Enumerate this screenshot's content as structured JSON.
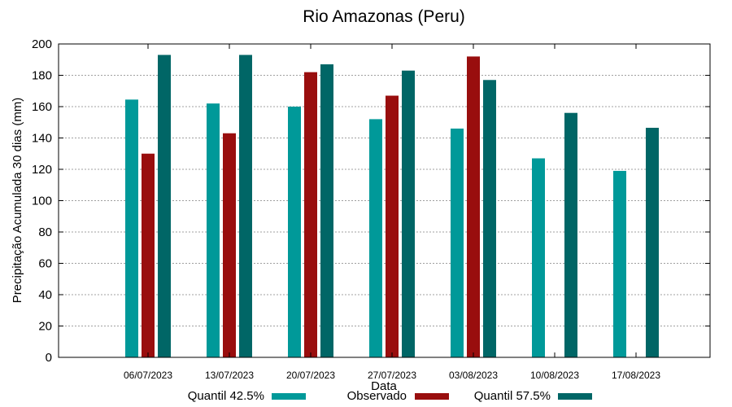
{
  "chart_data": {
    "type": "bar",
    "title": "Rio Amazonas (Peru)",
    "xlabel": "Data",
    "ylabel": "Precipitação Acumulada 30 dias (mm)",
    "ylim": [
      0,
      200
    ],
    "yticks": [
      0,
      20,
      40,
      60,
      80,
      100,
      120,
      140,
      160,
      180,
      200
    ],
    "grid": true,
    "legend_position": "bottom",
    "categories": [
      "06/07/2023",
      "13/07/2023",
      "20/07/2023",
      "27/07/2023",
      "03/08/2023",
      "10/08/2023",
      "17/08/2023"
    ],
    "series": [
      {
        "name": "Quantil 42.5%",
        "color": "#009999",
        "values": [
          164.5,
          162,
          160,
          152,
          146,
          127,
          119
        ]
      },
      {
        "name": "Observado",
        "color": "#990e0e",
        "values": [
          130,
          143,
          182,
          167,
          192,
          null,
          null
        ]
      },
      {
        "name": "Quantil 57.5%",
        "color": "#006666",
        "values": [
          193,
          193,
          187,
          183,
          177,
          156,
          146.5
        ]
      }
    ]
  }
}
